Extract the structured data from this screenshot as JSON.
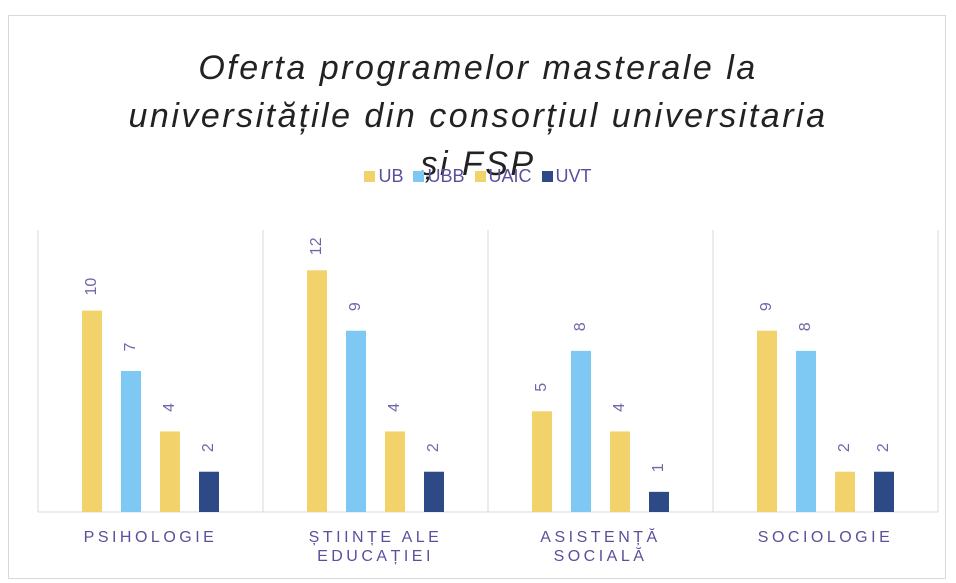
{
  "chart_data": {
    "type": "bar",
    "title": "Oferta programelor masterale la universitățile din consorțiul universitaria și FSP",
    "categories": [
      "PSIHOLOGIE",
      "ȘTIINȚE ALE EDUCAȚIEI",
      "ASISTENȚĂ SOCIALĂ",
      "SOCIOLOGIE"
    ],
    "series": [
      {
        "name": "UB",
        "color": "#f2d26b",
        "values": [
          10,
          12,
          5,
          9
        ]
      },
      {
        "name": "UBB",
        "color": "#7dc9f3",
        "values": [
          7,
          9,
          8,
          8
        ]
      },
      {
        "name": "UAIC",
        "color": "#f2d26b",
        "values": [
          4,
          4,
          4,
          2
        ]
      },
      {
        "name": "UVT",
        "color": "#2e4a86",
        "values": [
          2,
          2,
          1,
          2
        ]
      }
    ],
    "ylim": [
      0,
      14
    ],
    "legend": "top"
  }
}
